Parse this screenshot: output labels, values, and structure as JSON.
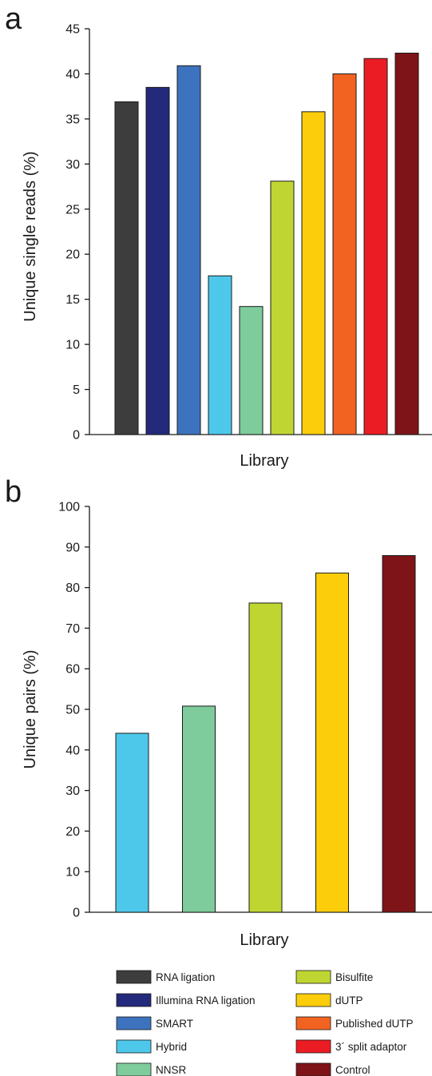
{
  "chart_data": [
    {
      "panel": "a",
      "type": "bar",
      "ylabel": "Unique single reads (%)",
      "xlabel": "Library",
      "ylim": [
        0,
        45
      ],
      "yticks": [
        0,
        5,
        10,
        15,
        20,
        25,
        30,
        35,
        40,
        45
      ],
      "grid": false,
      "categories": [
        "RNA ligation",
        "Illumina RNA ligation",
        "SMART",
        "Hybrid",
        "NNSR",
        "Bisulfite",
        "dUTP",
        "Published dUTP",
        "3´ split adaptor",
        "Control"
      ],
      "values": [
        36.9,
        38.5,
        40.9,
        17.6,
        14.2,
        28.1,
        35.8,
        40.0,
        41.7,
        42.3
      ],
      "colors": [
        "#3d3d3d",
        "#232a7c",
        "#3d73be",
        "#4ec8ea",
        "#7ecb9b",
        "#bfd632",
        "#fbcd0b",
        "#f26322",
        "#ec1c24",
        "#7e1417"
      ]
    },
    {
      "panel": "b",
      "type": "bar",
      "ylabel": "Unique pairs (%)",
      "xlabel": "Library",
      "ylim": [
        0,
        100
      ],
      "yticks": [
        0,
        10,
        20,
        30,
        40,
        50,
        60,
        70,
        80,
        90,
        100
      ],
      "grid": false,
      "categories": [
        "Hybrid",
        "NNSR",
        "Bisulfite",
        "dUTP",
        "Control"
      ],
      "values": [
        44.1,
        50.8,
        76.2,
        83.6,
        87.9
      ],
      "colors": [
        "#4ec8ea",
        "#7ecb9b",
        "#bfd632",
        "#fbcd0b",
        "#7e1417"
      ]
    }
  ],
  "legend": {
    "placement": "bottom",
    "items": [
      {
        "label": "RNA ligation",
        "color": "#3d3d3d"
      },
      {
        "label": "Illumina RNA ligation",
        "color": "#232a7c"
      },
      {
        "label": "SMART",
        "color": "#3d73be"
      },
      {
        "label": "Hybrid",
        "color": "#4ec8ea"
      },
      {
        "label": "NNSR",
        "color": "#7ecb9b"
      },
      {
        "label": "Bisulfite",
        "color": "#bfd632"
      },
      {
        "label": "dUTP",
        "color": "#fbcd0b"
      },
      {
        "label": "Published dUTP",
        "color": "#f26322"
      },
      {
        "label": "3´ split adaptor",
        "color": "#ec1c24"
      },
      {
        "label": "Control",
        "color": "#7e1417"
      }
    ]
  }
}
